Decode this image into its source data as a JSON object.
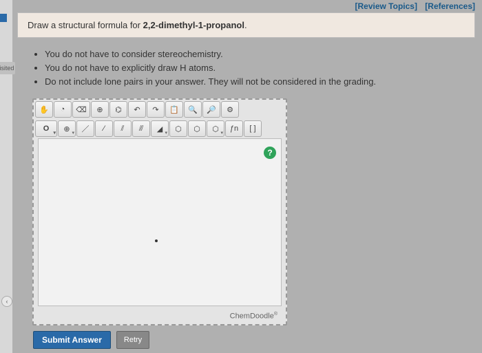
{
  "top_links": {
    "review": "[Review Topics]",
    "references": "[References]"
  },
  "left_rail": {
    "visited": "Visited",
    "nav_glyph": "‹"
  },
  "question": {
    "prefix": "Draw a structural formula for ",
    "compound": "2,2-dimethyl-1-propanol",
    "suffix": "."
  },
  "instructions": [
    "You do not have to consider stereochemistry.",
    "You do not have to explicitly draw H atoms.",
    "Do not include lone pairs in your answer. They will not be considered in the grading."
  ],
  "toolbar": {
    "row1": [
      {
        "name": "hand-icon",
        "glyph": "✋"
      },
      {
        "name": "lasso-icon",
        "glyph": "◔"
      },
      {
        "name": "eraser-icon",
        "glyph": "⌫"
      },
      {
        "name": "clear-icon",
        "glyph": "⊕"
      },
      {
        "name": "rings-icon",
        "glyph": "⌬"
      },
      {
        "name": "undo-icon",
        "glyph": "↶"
      },
      {
        "name": "redo-icon",
        "glyph": "↷"
      },
      {
        "name": "paste-icon",
        "glyph": "📋"
      },
      {
        "name": "zoom-in-icon",
        "glyph": "🔍"
      },
      {
        "name": "zoom-out-icon",
        "glyph": "🔎"
      },
      {
        "name": "settings-icon",
        "glyph": "⚙"
      }
    ],
    "row2_left": {
      "name": "atom-zero",
      "label": "O",
      "dd": "▾"
    },
    "row2": [
      {
        "name": "plus-icon",
        "glyph": "⊕",
        "dd": "▾"
      },
      {
        "name": "single-bond-icon",
        "glyph": "／"
      },
      {
        "name": "dashed-bond-icon",
        "glyph": "∕"
      },
      {
        "name": "double-bond-icon",
        "glyph": "⫽"
      },
      {
        "name": "triple-bond-icon",
        "glyph": "⫻"
      },
      {
        "name": "wedge-bond-icon",
        "glyph": "◢",
        "dd": "▾"
      },
      {
        "name": "hex1-icon",
        "glyph": "⬡"
      },
      {
        "name": "hex2-icon",
        "glyph": "⬡"
      },
      {
        "name": "hex3-icon",
        "glyph": "⬡",
        "dd": "▾"
      },
      {
        "name": "fn-icon",
        "glyph": "ƒn"
      },
      {
        "name": "brackets-icon",
        "glyph": "[ ]"
      }
    ]
  },
  "help": "?",
  "brand": "ChemDoodle",
  "brand_mark": "®",
  "buttons": {
    "submit": "Submit Answer",
    "retry": "Retry"
  }
}
